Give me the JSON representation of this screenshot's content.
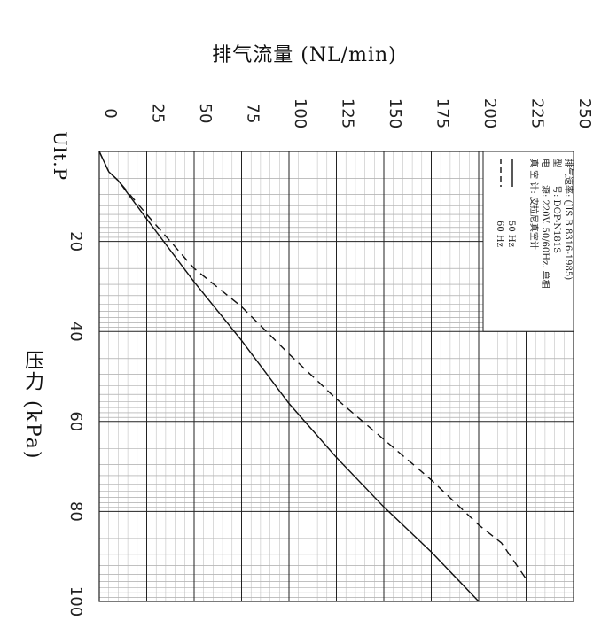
{
  "chart_data": {
    "type": "line",
    "title": "",
    "xlabel": "排气流量 (NL/min)",
    "ylabel": "压力 (kPa)",
    "unit_label": "Ult.P",
    "x_ticks": [
      "0",
      "25",
      "50",
      "75",
      "100",
      "125",
      "150",
      "175",
      "200",
      "225",
      "250"
    ],
    "y_ticks": [
      "20",
      "40",
      "60",
      "80",
      "100"
    ],
    "xlim": [
      0,
      250
    ],
    "ylim": [
      0,
      100
    ],
    "grid": true,
    "legend_position": "top-right",
    "legend_lines": [
      "排气速率: (JIS B 8316-1985)",
      "型　　号: DOP-N181S",
      "电　　源: 220V. 50/60Hz. 单相",
      "真 空 计: 皮拉尼真空计"
    ],
    "series": [
      {
        "name": "50 Hz",
        "style": "solid",
        "points": [
          [
            0,
            0
          ],
          [
            5,
            4.5
          ],
          [
            10,
            6.5
          ],
          [
            25,
            15
          ],
          [
            50,
            29
          ],
          [
            75,
            42
          ],
          [
            100,
            56
          ],
          [
            125,
            68
          ],
          [
            150,
            79
          ],
          [
            175,
            89
          ],
          [
            200,
            100
          ]
        ]
      },
      {
        "name": "60 Hz",
        "style": "dashed",
        "points": [
          [
            0,
            0
          ],
          [
            5,
            4.5
          ],
          [
            10,
            6.5
          ],
          [
            25,
            14
          ],
          [
            50,
            26
          ],
          [
            75,
            34.5
          ],
          [
            100,
            45
          ],
          [
            125,
            55
          ],
          [
            150,
            64
          ],
          [
            175,
            73
          ],
          [
            200,
            83
          ],
          [
            212,
            87
          ],
          [
            225,
            95
          ]
        ]
      }
    ]
  }
}
